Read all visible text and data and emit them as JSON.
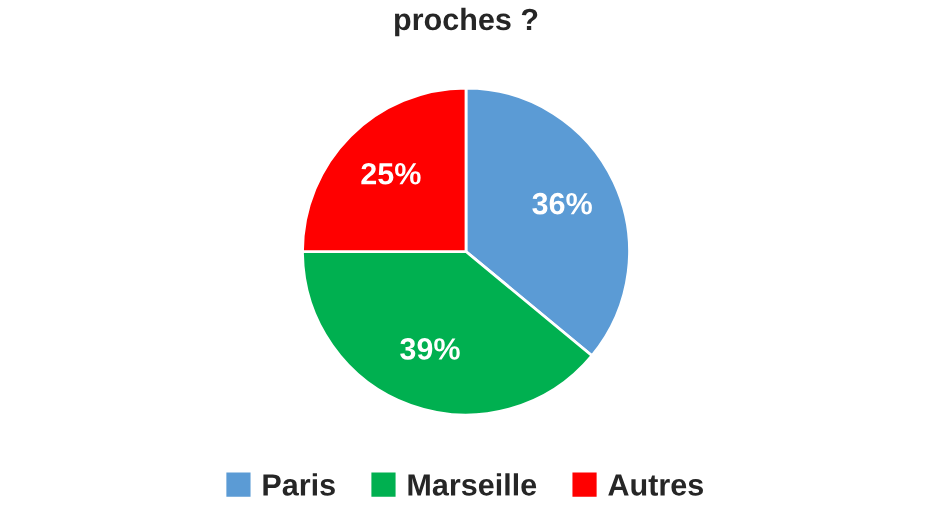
{
  "chart_data": {
    "type": "pie",
    "title": "proches ?",
    "categories": [
      "Paris",
      "Marseille",
      "Autres"
    ],
    "values": [
      36,
      39,
      25
    ],
    "colors": [
      "#5b9bd5",
      "#00b050",
      "#ff0000"
    ],
    "value_labels": [
      "36%",
      "39%",
      "25%"
    ],
    "legend": "bottom"
  }
}
